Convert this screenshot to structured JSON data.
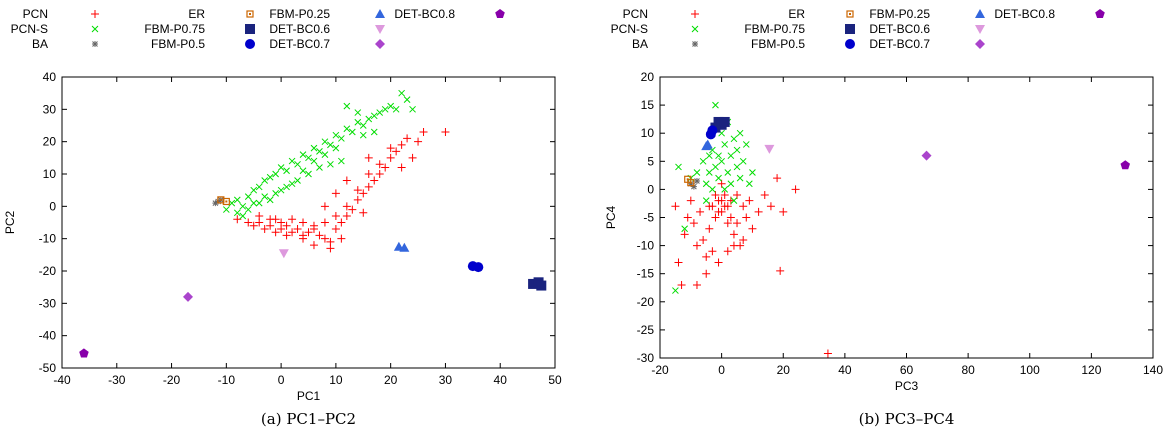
{
  "legend_series": [
    {
      "name": "PCN",
      "marker": "plus",
      "color": "#ff0000"
    },
    {
      "name": "PCN-S",
      "marker": "cross",
      "color": "#00dd00"
    },
    {
      "name": "BA",
      "marker": "star",
      "color": "#666666"
    },
    {
      "name": "ER",
      "marker": "open-square",
      "color": "#cc6600"
    },
    {
      "name": "FBM-P0.75",
      "marker": "filled-square",
      "color": "#1a237e"
    },
    {
      "name": "FBM-P0.5",
      "marker": "filled-circle",
      "color": "#0000cc"
    },
    {
      "name": "FBM-P0.25",
      "marker": "filled-triangle-up",
      "color": "#3366dd"
    },
    {
      "name": "DET-BC0.6",
      "marker": "filled-triangle-down",
      "color": "#dd99dd"
    },
    {
      "name": "DET-BC0.7",
      "marker": "filled-diamond",
      "color": "#aa44cc"
    },
    {
      "name": "DET-BC0.8",
      "marker": "filled-pentagon",
      "color": "#8800aa"
    }
  ],
  "chart_data": [
    {
      "type": "scatter",
      "caption": "(a) PC1–PC2",
      "xlabel": "PC1",
      "ylabel": "PC2",
      "xlim": [
        -40,
        50
      ],
      "ylim": [
        -50,
        40
      ],
      "xticks": [
        -40,
        -30,
        -20,
        -10,
        0,
        10,
        20,
        30,
        40,
        50
      ],
      "yticks": [
        -50,
        -40,
        -30,
        -20,
        -10,
        0,
        10,
        20,
        30,
        40
      ],
      "grid": false,
      "legend_position": "top",
      "series": [
        {
          "name": "PCN",
          "points": [
            [
              -8,
              -4
            ],
            [
              -6,
              -5
            ],
            [
              -5,
              -6
            ],
            [
              -4,
              -5
            ],
            [
              -3,
              -7
            ],
            [
              -2,
              -6
            ],
            [
              -1,
              -8
            ],
            [
              0,
              -7
            ],
            [
              1,
              -6
            ],
            [
              2,
              -8
            ],
            [
              3,
              -7
            ],
            [
              4,
              -9
            ],
            [
              5,
              -8
            ],
            [
              6,
              -6
            ],
            [
              7,
              -9
            ],
            [
              8,
              -10
            ],
            [
              9,
              -11
            ],
            [
              10,
              -7
            ],
            [
              11,
              -5
            ],
            [
              12,
              -3
            ],
            [
              13,
              -1
            ],
            [
              14,
              2
            ],
            [
              15,
              4
            ],
            [
              16,
              6
            ],
            [
              17,
              8
            ],
            [
              18,
              10
            ],
            [
              19,
              12
            ],
            [
              20,
              15
            ],
            [
              21,
              17
            ],
            [
              22,
              19
            ],
            [
              23,
              21
            ],
            [
              25,
              20
            ],
            [
              26,
              23
            ],
            [
              30,
              23
            ],
            [
              -4,
              -3
            ],
            [
              -2,
              -4
            ],
            [
              0,
              -5
            ],
            [
              2,
              -4
            ],
            [
              4,
              -5
            ],
            [
              6,
              -7
            ],
            [
              8,
              -5
            ],
            [
              10,
              -3
            ],
            [
              12,
              0
            ],
            [
              14,
              5
            ],
            [
              16,
              10
            ],
            [
              18,
              13
            ],
            [
              20,
              18
            ],
            [
              8,
              0
            ],
            [
              10,
              4
            ],
            [
              12,
              8
            ],
            [
              6,
              -12
            ],
            [
              9,
              -13
            ],
            [
              4,
              -10
            ],
            [
              1,
              -9
            ],
            [
              -1,
              -4
            ],
            [
              16,
              15
            ],
            [
              22,
              12
            ],
            [
              24,
              15
            ],
            [
              15,
              -2
            ],
            [
              11,
              -10
            ]
          ]
        },
        {
          "name": "PCN-S",
          "points": [
            [
              -10,
              -1
            ],
            [
              -9,
              1
            ],
            [
              -8,
              2
            ],
            [
              -7,
              0
            ],
            [
              -6,
              3
            ],
            [
              -5,
              5
            ],
            [
              -4,
              6
            ],
            [
              -3,
              8
            ],
            [
              -2,
              9
            ],
            [
              -1,
              10
            ],
            [
              0,
              12
            ],
            [
              1,
              11
            ],
            [
              2,
              14
            ],
            [
              3,
              13
            ],
            [
              4,
              16
            ],
            [
              5,
              15
            ],
            [
              6,
              18
            ],
            [
              7,
              17
            ],
            [
              8,
              20
            ],
            [
              9,
              19
            ],
            [
              10,
              22
            ],
            [
              11,
              21
            ],
            [
              12,
              24
            ],
            [
              13,
              23
            ],
            [
              14,
              26
            ],
            [
              15,
              25
            ],
            [
              16,
              27
            ],
            [
              17,
              28
            ],
            [
              18,
              29
            ],
            [
              19,
              30
            ],
            [
              20,
              31
            ],
            [
              21,
              30
            ],
            [
              22,
              35
            ],
            [
              23,
              33
            ],
            [
              24,
              30
            ],
            [
              12,
              31
            ],
            [
              14,
              29
            ],
            [
              -7,
              -3
            ],
            [
              -5,
              1
            ],
            [
              -3,
              3
            ],
            [
              -1,
              4
            ],
            [
              1,
              6
            ],
            [
              3,
              8
            ],
            [
              5,
              10
            ],
            [
              7,
              12
            ],
            [
              9,
              13
            ],
            [
              11,
              14
            ],
            [
              -8,
              -2
            ],
            [
              -6,
              -1
            ],
            [
              -4,
              1
            ],
            [
              0,
              5
            ],
            [
              2,
              7
            ],
            [
              6,
              14
            ],
            [
              8,
              16
            ],
            [
              10,
              18
            ],
            [
              4,
              11
            ],
            [
              -2,
              2
            ],
            [
              15,
              22
            ],
            [
              17,
              23
            ]
          ]
        },
        {
          "name": "BA",
          "points": [
            [
              -12,
              1
            ],
            [
              -11,
              2
            ],
            [
              -11.5,
              1.5
            ]
          ]
        },
        {
          "name": "ER",
          "points": [
            [
              -11,
              2
            ],
            [
              -10,
              1.5
            ]
          ]
        },
        {
          "name": "FBM-P0.75",
          "points": [
            [
              46,
              -24
            ],
            [
              47,
              -23.5
            ],
            [
              47.5,
              -24.5
            ]
          ]
        },
        {
          "name": "FBM-P0.5",
          "points": [
            [
              35,
              -18.5
            ],
            [
              36,
              -18.8
            ]
          ]
        },
        {
          "name": "FBM-P0.25",
          "points": [
            [
              21.5,
              -12.5
            ],
            [
              22.5,
              -12.8
            ]
          ]
        },
        {
          "name": "DET-BC0.6",
          "points": [
            [
              0.5,
              -14.5
            ]
          ]
        },
        {
          "name": "DET-BC0.7",
          "points": [
            [
              -17,
              -28
            ]
          ]
        },
        {
          "name": "DET-BC0.8",
          "points": [
            [
              -36,
              -45.5
            ]
          ]
        }
      ]
    },
    {
      "type": "scatter",
      "caption": "(b) PC3–PC4",
      "xlabel": "PC3",
      "ylabel": "PC4",
      "xlim": [
        -20,
        140
      ],
      "ylim": [
        -30,
        20
      ],
      "xticks": [
        -20,
        0,
        20,
        40,
        60,
        80,
        100,
        120,
        140
      ],
      "yticks": [
        -30,
        -25,
        -20,
        -15,
        -10,
        -5,
        0,
        5,
        10,
        15,
        20
      ],
      "grid": false,
      "legend_position": "top",
      "series": [
        {
          "name": "PCN",
          "points": [
            [
              -15,
              -3
            ],
            [
              -14,
              -13
            ],
            [
              -13,
              -17
            ],
            [
              -12,
              -8
            ],
            [
              -11,
              -5
            ],
            [
              -10,
              -2
            ],
            [
              -9,
              -6
            ],
            [
              -8,
              -10
            ],
            [
              -7,
              -4
            ],
            [
              -6,
              -9
            ],
            [
              -5,
              -12
            ],
            [
              -4,
              -7
            ],
            [
              -3,
              -3
            ],
            [
              -2,
              -5
            ],
            [
              -1,
              -2
            ],
            [
              0,
              -4
            ],
            [
              1,
              -3
            ],
            [
              2,
              -6
            ],
            [
              3,
              -2
            ],
            [
              4,
              -8
            ],
            [
              5,
              -1
            ],
            [
              6,
              -10
            ],
            [
              7,
              -3
            ],
            [
              8,
              -5
            ],
            [
              9,
              -2
            ],
            [
              10,
              -7
            ],
            [
              12,
              -4
            ],
            [
              14,
              -1
            ],
            [
              16,
              -3
            ],
            [
              18,
              2
            ],
            [
              20,
              -4
            ],
            [
              24,
              0
            ],
            [
              19,
              -14.5
            ],
            [
              34.5,
              -29.2
            ],
            [
              -8,
              -17
            ],
            [
              -5,
              -15
            ],
            [
              -3,
              -11
            ],
            [
              -1,
              -13
            ],
            [
              2,
              -11
            ],
            [
              4,
              -10
            ],
            [
              -2,
              -1
            ],
            [
              0,
              -2
            ],
            [
              1,
              -1
            ],
            [
              -1,
              -4
            ],
            [
              2,
              -3
            ],
            [
              0,
              1
            ],
            [
              -4,
              -3
            ],
            [
              3,
              -5
            ],
            [
              5,
              -6
            ],
            [
              7,
              -9
            ]
          ]
        },
        {
          "name": "PCN-S",
          "points": [
            [
              -15,
              -18
            ],
            [
              -14,
              4
            ],
            [
              -12,
              -7
            ],
            [
              -10,
              2
            ],
            [
              -8,
              3
            ],
            [
              -6,
              5
            ],
            [
              -5,
              1
            ],
            [
              -4,
              3
            ],
            [
              -3,
              7
            ],
            [
              -2,
              4
            ],
            [
              -1,
              6
            ],
            [
              0,
              5
            ],
            [
              1,
              8
            ],
            [
              2,
              3
            ],
            [
              3,
              6
            ],
            [
              4,
              9
            ],
            [
              5,
              4
            ],
            [
              6,
              2
            ],
            [
              7,
              5
            ],
            [
              8,
              8
            ],
            [
              9,
              1
            ],
            [
              10,
              3
            ],
            [
              -2,
              15
            ],
            [
              0,
              10
            ],
            [
              2,
              12
            ],
            [
              -1,
              2
            ],
            [
              1,
              0
            ],
            [
              3,
              1
            ],
            [
              -3,
              0
            ],
            [
              4,
              -2
            ],
            [
              5,
              7
            ],
            [
              -5,
              -2
            ],
            [
              -4,
              6
            ],
            [
              6,
              10
            ]
          ]
        },
        {
          "name": "BA",
          "points": [
            [
              -10,
              1
            ],
            [
              -9,
              0.5
            ],
            [
              -8,
              1.5
            ]
          ]
        },
        {
          "name": "ER",
          "points": [
            [
              -11,
              1.8
            ],
            [
              -10,
              1.2
            ]
          ]
        },
        {
          "name": "FBM-P0.75",
          "points": [
            [
              -2,
              11
            ],
            [
              -1,
              12
            ],
            [
              0,
              11.5
            ],
            [
              1,
              12
            ]
          ]
        },
        {
          "name": "FBM-P0.5",
          "points": [
            [
              -3.5,
              9.8
            ],
            [
              -3,
              10.5
            ]
          ]
        },
        {
          "name": "FBM-P0.25",
          "points": [
            [
              -5,
              7.7
            ],
            [
              -4.5,
              8
            ]
          ]
        },
        {
          "name": "DET-BC0.6",
          "points": [
            [
              15.5,
              7.2
            ]
          ]
        },
        {
          "name": "DET-BC0.7",
          "points": [
            [
              66.5,
              6
            ]
          ]
        },
        {
          "name": "DET-BC0.8",
          "points": [
            [
              131,
              4.3
            ]
          ]
        }
      ]
    }
  ]
}
